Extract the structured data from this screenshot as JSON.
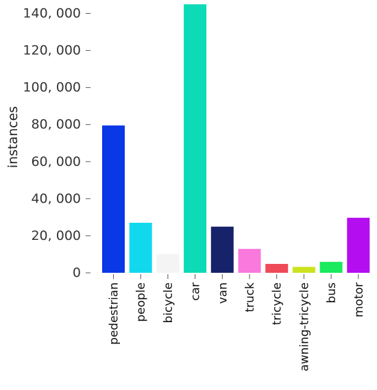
{
  "chart_data": {
    "type": "bar",
    "ylabel": "instances",
    "xlabel": "",
    "ylim": [
      0,
      145000
    ],
    "yticks": [
      0,
      20000,
      40000,
      60000,
      80000,
      100000,
      120000,
      140000
    ],
    "ytick_labels": [
      "0",
      "20, 000",
      "40, 000",
      "60, 000",
      "80, 000",
      "100, 000",
      "120, 000",
      "140, 000"
    ],
    "categories": [
      "pedestrian",
      "people",
      "bicycle",
      "car",
      "van",
      "truck",
      "tricycle",
      "awning-tricycle",
      "bus",
      "motor"
    ],
    "values": [
      79500,
      27000,
      10200,
      144900,
      24900,
      12900,
      4800,
      3200,
      5900,
      29700
    ],
    "colors": [
      "#0a38e6",
      "#12d8ee",
      "#f4f4f4",
      "#0ddab6",
      "#16226a",
      "#f979dd",
      "#ef4a57",
      "#cde21f",
      "#19ea5e",
      "#b30df0"
    ],
    "grid": false,
    "legend": "none"
  }
}
